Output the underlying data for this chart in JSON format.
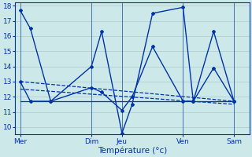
{
  "background_color": "#cde8e8",
  "grid_color": "#aacccc",
  "line_color": "#0033aa",
  "ylim": [
    9.5,
    18.2
  ],
  "yticks": [
    10,
    11,
    12,
    13,
    14,
    15,
    16,
    17,
    18
  ],
  "xlabel": "Température (°c)",
  "xlabel_fontsize": 7.5,
  "tick_fontsize": 6.5,
  "day_labels": [
    "Mer",
    "",
    "Dim",
    "Jeu",
    "",
    "Ven",
    "",
    "Sam"
  ],
  "day_tick_positions": [
    0,
    7,
    10,
    16,
    21
  ],
  "day_tick_labels": [
    "Mer",
    "Dim",
    "Jeu",
    "Ven",
    "Sam"
  ],
  "xlim": [
    -0.5,
    22.5
  ],
  "series": [
    {
      "x": [
        0,
        1,
        3,
        7,
        8,
        10,
        11,
        13,
        16,
        17,
        19,
        21
      ],
      "y": [
        17.7,
        16.5,
        11.7,
        14.0,
        16.3,
        9.6,
        11.5,
        17.5,
        17.9,
        11.7,
        16.3,
        11.7
      ],
      "linestyle": "-",
      "marker": "D",
      "markersize": 2.0,
      "linewidth": 1.0
    },
    {
      "x": [
        0,
        1,
        3,
        7,
        8,
        10,
        11,
        13,
        16,
        17,
        19,
        21
      ],
      "y": [
        13.0,
        11.7,
        11.7,
        12.6,
        12.3,
        11.1,
        12.0,
        15.3,
        11.7,
        11.7,
        13.9,
        11.7
      ],
      "linestyle": "-",
      "marker": "D",
      "markersize": 2.0,
      "linewidth": 1.0
    },
    {
      "x": [
        0,
        21
      ],
      "y": [
        13.0,
        11.7
      ],
      "linestyle": "--",
      "marker": "None",
      "markersize": 0,
      "linewidth": 0.9
    },
    {
      "x": [
        0,
        21
      ],
      "y": [
        12.5,
        11.5
      ],
      "linestyle": "--",
      "marker": "None",
      "markersize": 0,
      "linewidth": 0.9
    },
    {
      "x": [
        0,
        21
      ],
      "y": [
        11.7,
        11.7
      ],
      "linestyle": "-",
      "marker": "None",
      "markersize": 0,
      "linewidth": 0.9
    }
  ],
  "vline_positions": [
    0,
    7,
    10,
    16,
    21
  ]
}
